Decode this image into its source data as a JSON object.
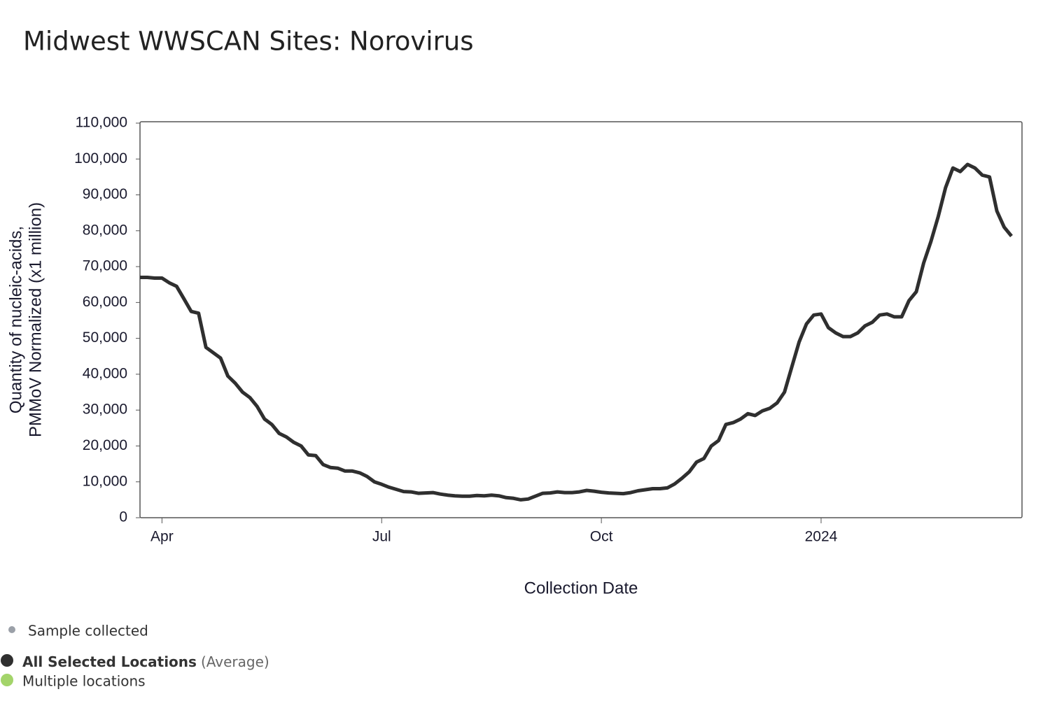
{
  "chart_data": {
    "type": "line",
    "title": "Midwest WWSCAN Sites: Norovirus",
    "xlabel": "Collection Date",
    "ylabel": [
      "Quantity of nucleic-acids,",
      "PMMoV Normalized (x1 million)"
    ],
    "categories": [
      null,
      null,
      null,
      "Apr",
      null,
      null,
      null,
      null,
      null,
      null,
      null,
      null,
      null,
      null,
      null,
      null,
      null,
      null,
      null,
      null,
      null,
      null,
      null,
      null,
      null,
      null,
      null,
      null,
      null,
      null,
      null,
      null,
      null,
      "Jul",
      null,
      null,
      null,
      null,
      null,
      null,
      null,
      null,
      null,
      null,
      null,
      null,
      null,
      null,
      null,
      null,
      null,
      null,
      null,
      null,
      null,
      null,
      null,
      null,
      null,
      null,
      null,
      null,
      null,
      "Oct",
      null,
      null,
      null,
      null,
      null,
      null,
      null,
      null,
      null,
      null,
      null,
      null,
      null,
      null,
      null,
      null,
      null,
      null,
      null,
      null,
      null,
      null,
      null,
      null,
      null,
      null,
      null,
      null,
      null,
      "2024",
      null,
      null,
      null,
      null,
      null,
      null,
      null,
      null,
      null,
      null,
      null,
      null,
      null,
      null,
      null,
      null,
      null,
      null,
      null,
      null,
      null,
      null,
      null,
      null,
      null,
      null
    ],
    "series": [
      {
        "name": "All Selected Locations",
        "color": "#2f2f2f",
        "values": [
          67000,
          67000,
          66800,
          66800,
          65500,
          64500,
          61000,
          57500,
          57000,
          47500,
          46000,
          44500,
          39500,
          37500,
          35000,
          33500,
          31000,
          27500,
          26000,
          23500,
          22500,
          21000,
          20000,
          17500,
          17300,
          14800,
          14000,
          13800,
          13000,
          13000,
          12500,
          11500,
          10000,
          9300,
          8500,
          7900,
          7300,
          7200,
          6800,
          6900,
          7000,
          6600,
          6300,
          6100,
          6000,
          6000,
          6200,
          6100,
          6300,
          6100,
          5600,
          5400,
          5000,
          5200,
          6000,
          6800,
          6900,
          7200,
          7000,
          7000,
          7200,
          7600,
          7400,
          7100,
          6900,
          6800,
          6700,
          7000,
          7500,
          7800,
          8100,
          8100,
          8300,
          9400,
          11000,
          12800,
          15500,
          16500,
          20000,
          21500,
          26000,
          26500,
          27500,
          29000,
          28500,
          29800,
          30500,
          32000,
          35000,
          42000,
          49000,
          54000,
          56500,
          56800,
          53000,
          51500,
          50500,
          50500,
          51500,
          53500,
          54500,
          56500,
          56800,
          56000,
          56000,
          60500,
          63000,
          71000,
          77000,
          84000,
          92000,
          97500,
          96500,
          98500,
          97500,
          95500,
          95000,
          85500,
          81000,
          78500
        ]
      }
    ],
    "legend_note": "(Average)",
    "legend_extra": [
      {
        "name": "Sample collected",
        "color": "#9ba0a8"
      },
      {
        "name": "Multiple locations",
        "color": "#a3d46a"
      }
    ],
    "ylim": [
      0,
      110000
    ],
    "yticks": [
      0,
      {
        "value": 10000,
        "label": "10,000"
      },
      {
        "value": 20000,
        "label": "20,000"
      },
      {
        "value": 30000,
        "label": "30,000"
      },
      {
        "value": 40000,
        "label": "40,000"
      },
      {
        "value": 50000,
        "label": "50,000"
      },
      {
        "value": 60000,
        "label": "60,000"
      },
      {
        "value": 70000,
        "label": "70,000"
      },
      {
        "value": 80000,
        "label": "80,000"
      },
      {
        "value": 90000,
        "label": "90,000"
      },
      {
        "value": 100000,
        "label": "100,000"
      },
      {
        "value": 110000,
        "label": "110,000"
      }
    ]
  }
}
